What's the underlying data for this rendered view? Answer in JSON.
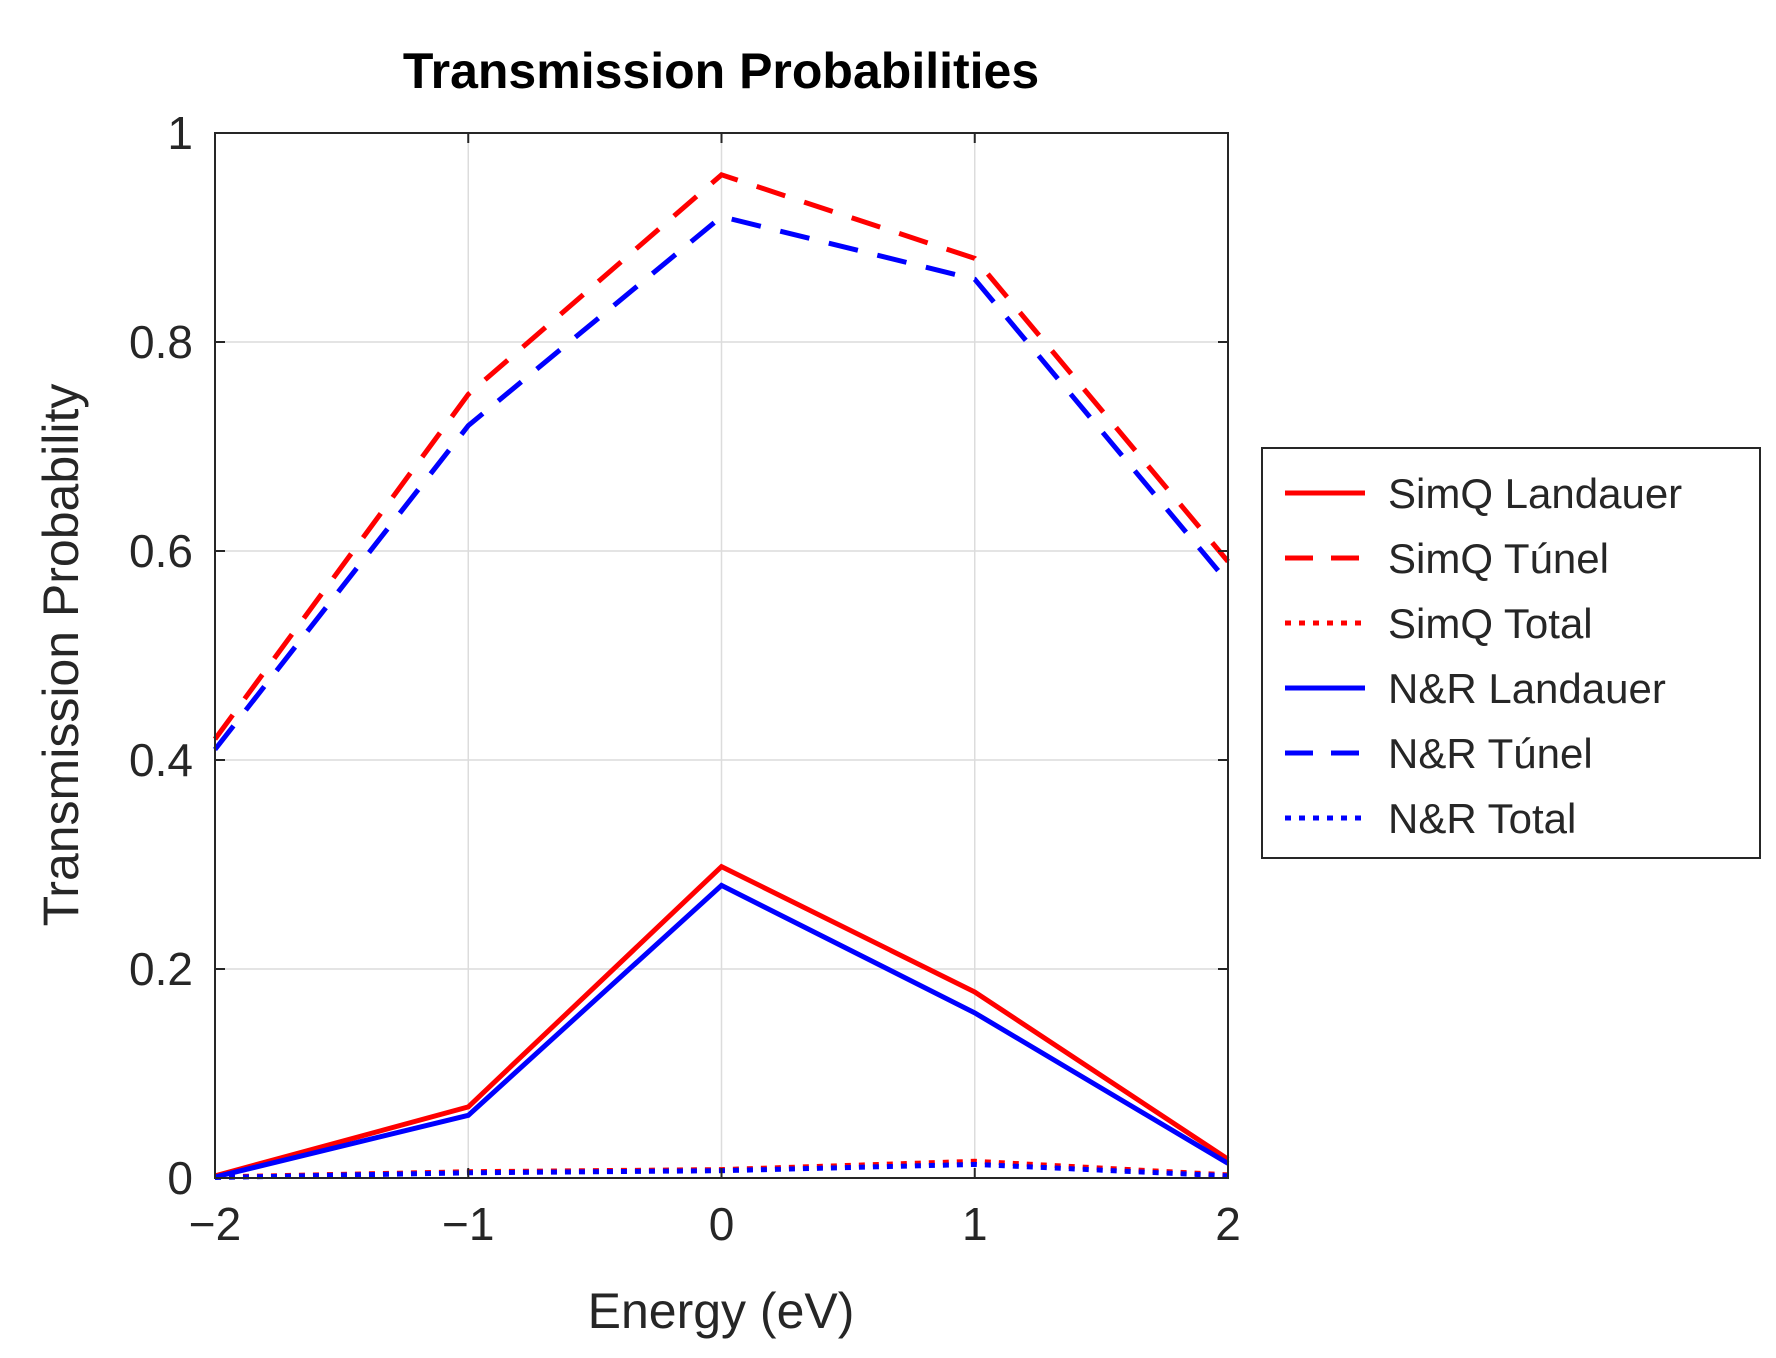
{
  "chart_data": {
    "type": "line",
    "title": "Transmission Probabilities",
    "xlabel": "Energy (eV)",
    "ylabel": "Transmission Probability",
    "xlim": [
      -2,
      2
    ],
    "ylim": [
      0,
      1
    ],
    "grid": true,
    "legend_position": "outside-right",
    "x": [
      -2,
      -1,
      0,
      1,
      2
    ],
    "xticks": [
      -2,
      -1,
      0,
      1,
      2
    ],
    "xtick_labels": [
      "−2",
      "−1",
      "0",
      "1",
      "2"
    ],
    "yticks": [
      0,
      0.2,
      0.4,
      0.6,
      0.8,
      1
    ],
    "ytick_labels": [
      "0",
      "0.2",
      "0.4",
      "0.6",
      "0.8",
      "1"
    ],
    "series": [
      {
        "name": "SimQ Landauer",
        "color": "#ff0000",
        "style": "solid",
        "values": [
          0.002,
          0.068,
          0.298,
          0.178,
          0.018
        ]
      },
      {
        "name": "SimQ Túnel",
        "color": "#ff0000",
        "style": "dashed",
        "values": [
          0.42,
          0.75,
          0.96,
          0.88,
          0.59
        ]
      },
      {
        "name": "SimQ Total",
        "color": "#ff0000",
        "style": "dotted",
        "values": [
          0.001,
          0.006,
          0.008,
          0.016,
          0.003
        ]
      },
      {
        "name": "N&R Landauer",
        "color": "#0000ff",
        "style": "solid",
        "values": [
          0.001,
          0.06,
          0.28,
          0.158,
          0.014
        ]
      },
      {
        "name": "N&R Túnel",
        "color": "#0000ff",
        "style": "dashed",
        "values": [
          0.41,
          0.72,
          0.92,
          0.86,
          0.57
        ]
      },
      {
        "name": "N&R Total",
        "color": "#0000ff",
        "style": "dotted",
        "values": [
          0.0005,
          0.005,
          0.007,
          0.013,
          0.002
        ]
      }
    ]
  }
}
